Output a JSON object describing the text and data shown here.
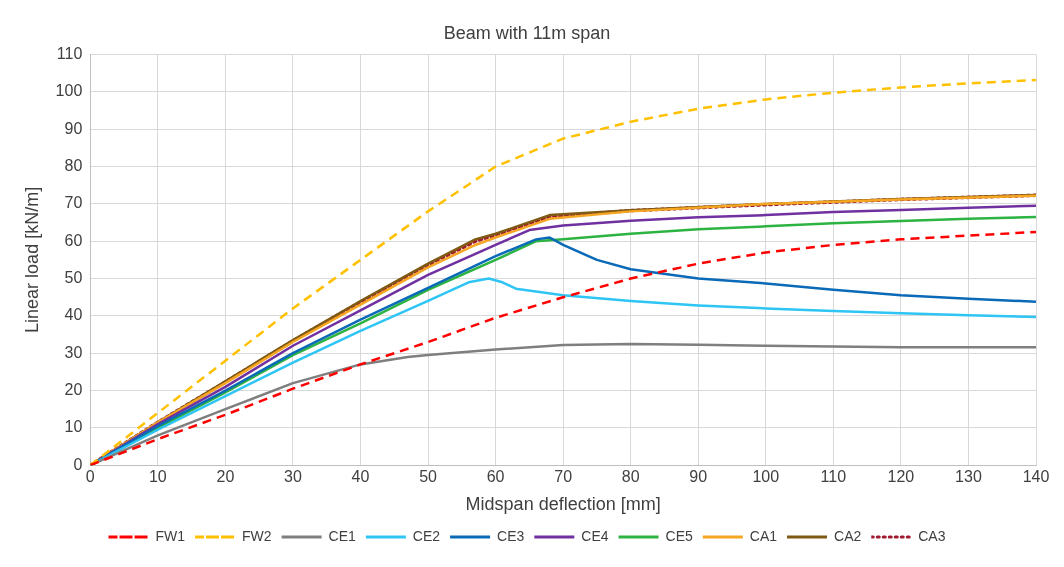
{
  "chart_data": {
    "type": "line",
    "title": "Beam with 11m span",
    "xlabel": "Midspan deflection [mm]",
    "ylabel": "Linear load [kN/m]",
    "xlim": [
      0,
      140
    ],
    "xticks": [
      0,
      10,
      20,
      30,
      40,
      50,
      60,
      70,
      80,
      90,
      100,
      110,
      120,
      130,
      140
    ],
    "ylim": [
      0,
      110
    ],
    "yticks": [
      0,
      10,
      20,
      30,
      40,
      50,
      60,
      70,
      80,
      90,
      100,
      110
    ],
    "grid": true,
    "legend": "bottom",
    "marker": "none",
    "series": [
      {
        "name": "FW1",
        "color": "#ff0000",
        "line_style": "dashed",
        "x": [
          0,
          10,
          20,
          30,
          40,
          50,
          60,
          70,
          80,
          90,
          100,
          110,
          120,
          130,
          140
        ],
        "values": [
          0,
          7,
          13.5,
          20.5,
          27,
          33,
          39.5,
          45,
          50,
          54,
          57,
          59,
          60.5,
          61.5,
          62.5
        ]
      },
      {
        "name": "FW2",
        "color": "#ffc000",
        "line_style": "dashed",
        "x": [
          0,
          10,
          20,
          30,
          40,
          50,
          60,
          70,
          80,
          90,
          100,
          110,
          120,
          130,
          140
        ],
        "values": [
          0,
          14,
          28,
          42,
          55,
          68,
          80,
          87.5,
          92,
          95.5,
          98,
          99.8,
          101.2,
          102.3,
          103.2
        ]
      },
      {
        "name": "CE1",
        "color": "#7f7f7f",
        "line_style": "solid",
        "x": [
          0,
          10,
          20,
          30,
          40,
          47,
          50,
          60,
          70,
          80,
          90,
          100,
          110,
          120,
          140
        ],
        "values": [
          0,
          8,
          15,
          22,
          27,
          29,
          29.5,
          31,
          32.2,
          32.5,
          32.3,
          32,
          31.8,
          31.6,
          31.6
        ]
      },
      {
        "name": "CE2",
        "color": "#2ec5f5",
        "line_style": "solid",
        "x": [
          0,
          10,
          20,
          30,
          40,
          50,
          56,
          59,
          61,
          63,
          70,
          80,
          90,
          100,
          110,
          120,
          130,
          140
        ],
        "values": [
          0,
          9.5,
          18.5,
          27.5,
          36,
          44,
          49,
          50,
          49,
          47.3,
          45.5,
          44,
          42.8,
          42,
          41.3,
          40.7,
          40.2,
          39.7
        ]
      },
      {
        "name": "CE3",
        "color": "#0a6ab8",
        "line_style": "solid",
        "x": [
          0,
          10,
          20,
          30,
          40,
          50,
          60,
          66,
          68,
          70,
          75,
          80,
          90,
          100,
          110,
          120,
          130,
          140
        ],
        "values": [
          0,
          10.5,
          20,
          30,
          39,
          47.5,
          56,
          60.5,
          61,
          59,
          55,
          52.5,
          50,
          48.7,
          47,
          45.5,
          44.6,
          43.8
        ]
      },
      {
        "name": "CE4",
        "color": "#7030a0",
        "line_style": "solid",
        "x": [
          0,
          10,
          20,
          30,
          40,
          50,
          60,
          65,
          70,
          80,
          90,
          100,
          110,
          120,
          130,
          140
        ],
        "values": [
          0,
          11,
          21,
          32,
          41.5,
          51,
          59,
          63,
          64.2,
          65.5,
          66.4,
          67,
          67.8,
          68.4,
          69,
          69.5
        ]
      },
      {
        "name": "CE5",
        "color": "#2db342",
        "line_style": "solid",
        "x": [
          0,
          10,
          20,
          30,
          40,
          50,
          60,
          66,
          70,
          80,
          90,
          100,
          110,
          120,
          130,
          140
        ],
        "values": [
          0,
          10,
          19.5,
          29.5,
          38,
          47,
          55,
          60,
          60.5,
          62,
          63.2,
          64,
          64.8,
          65.4,
          66,
          66.5
        ]
      },
      {
        "name": "CA1",
        "color": "#f5a623",
        "line_style": "solid",
        "x": [
          0,
          10,
          20,
          30,
          40,
          50,
          57,
          60,
          68,
          80,
          100,
          120,
          140
        ],
        "values": [
          0,
          11.5,
          22,
          33,
          43,
          53,
          59,
          61,
          66,
          68,
          70,
          71.2,
          72.2
        ]
      },
      {
        "name": "CA2",
        "color": "#7f5a12",
        "line_style": "solid",
        "x": [
          0,
          10,
          20,
          30,
          40,
          50,
          57,
          60,
          68,
          80,
          100,
          120,
          140
        ],
        "values": [
          0,
          11.5,
          22.5,
          33.5,
          44,
          54,
          60.5,
          62,
          67,
          68.3,
          70,
          71.3,
          72.4
        ]
      },
      {
        "name": "CA3",
        "color": "#a0192e",
        "line_style": "dotted",
        "x": [
          0,
          10,
          20,
          30,
          40,
          50,
          57,
          60,
          68,
          80,
          100,
          120,
          140
        ],
        "values": [
          0,
          11.5,
          22.3,
          33.3,
          43.7,
          53.7,
          60,
          61.7,
          66.5,
          68.2,
          69.8,
          71.2,
          72.3
        ]
      }
    ]
  }
}
